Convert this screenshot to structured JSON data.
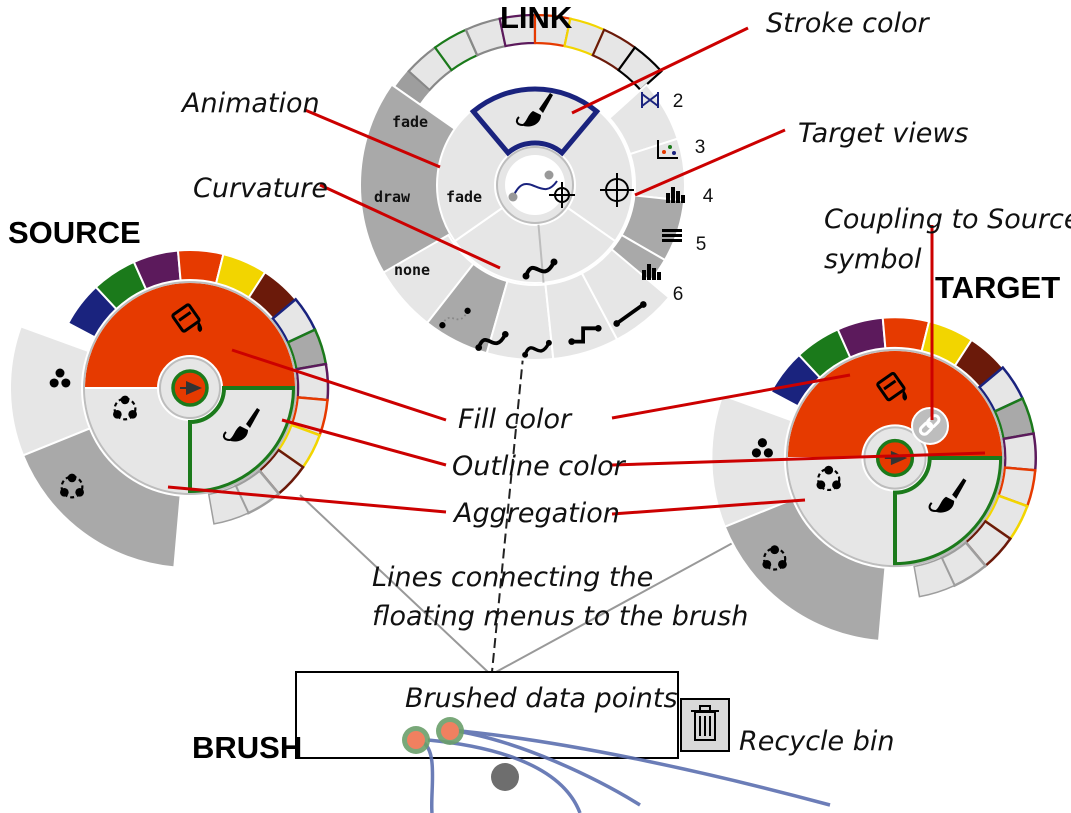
{
  "titles": {
    "link": "LINK",
    "source": "SOURCE",
    "target": "TARGET",
    "brush": "BRUSH"
  },
  "annotations": {
    "stroke_color": "Stroke color",
    "animation": "Animation",
    "target_views": "Target views",
    "curvature": "Curvature",
    "coupling_line1": "Coupling to Source",
    "coupling_line2": "symbol",
    "fill_color": "Fill color",
    "outline_color": "Outline color",
    "aggregation": "Aggregation",
    "lines_line1": "Lines connecting the",
    "lines_line2": "floating menus to the brush",
    "brushed_points": "Brushed data points",
    "recycle_bin": "Recycle bin"
  },
  "link_menu": {
    "animation_options": [
      "fade",
      "draw",
      "none"
    ],
    "animation_selected": "fade",
    "target_view_numbers": [
      "2",
      "3",
      "4",
      "5",
      "6"
    ]
  },
  "palette": [
    "#1a237e",
    "#1b7a1b",
    "#5c1a5c",
    "#e63a00",
    "#f2d500",
    "#6b1a0a"
  ],
  "colors": {
    "fill_selected": "#e63a00",
    "outline_selected": "#1b7a1b",
    "stroke_selected": "#1a237e",
    "annotation_line": "#cc0000",
    "brush_curve": "#5c6fb0"
  },
  "icons": [
    "paint-bucket-icon",
    "brush-icon",
    "crosshair-icon",
    "link-chain-icon",
    "trash-icon",
    "three-dots-icon",
    "group-icon",
    "bar-chart-icon",
    "scatter-icon",
    "parallel-coords-icon",
    "table-icon"
  ]
}
